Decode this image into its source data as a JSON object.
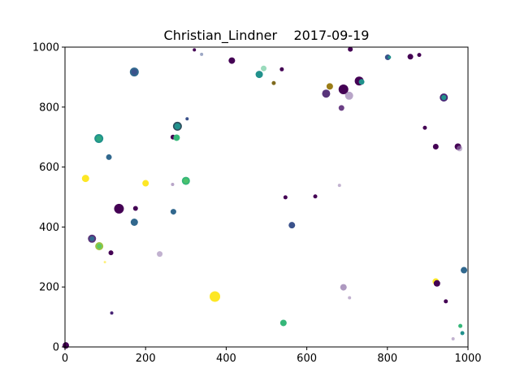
{
  "chart_data": {
    "type": "scatter",
    "title": "Christian_Lindner    2017-09-19",
    "xlabel": "",
    "ylabel": "",
    "xlim": [
      0,
      1000
    ],
    "ylim": [
      0,
      1000
    ],
    "grid": false,
    "legend": "none",
    "xticks": [
      "0",
      "200",
      "400",
      "600",
      "800",
      "1000"
    ],
    "yticks": [
      "0",
      "200",
      "400",
      "600",
      "800",
      "1000"
    ],
    "colormap": [
      "#440154",
      "#3b528b",
      "#21918c",
      "#5ec962",
      "#fde725"
    ],
    "points": [
      {
        "x": 172,
        "y": 917,
        "size": 5.5,
        "color": "#31688e",
        "alpha": 1
      },
      {
        "x": 172,
        "y": 917,
        "size": 3.5,
        "color": "#3b528b",
        "alpha": 1
      },
      {
        "x": 321,
        "y": 991,
        "size": 2,
        "color": "#440154",
        "alpha": 1
      },
      {
        "x": 339,
        "y": 976,
        "size": 2,
        "color": "#3b528b",
        "alpha": 0.5
      },
      {
        "x": 414,
        "y": 955,
        "size": 4,
        "color": "#440154",
        "alpha": 1
      },
      {
        "x": 493,
        "y": 929,
        "size": 3.5,
        "color": "#35b779",
        "alpha": 0.5
      },
      {
        "x": 482,
        "y": 909,
        "size": 4.5,
        "color": "#21918c",
        "alpha": 1
      },
      {
        "x": 538,
        "y": 926,
        "size": 2.5,
        "color": "#440154",
        "alpha": 1
      },
      {
        "x": 518,
        "y": 880,
        "size": 2.5,
        "color": "#7f6a1d",
        "alpha": 1
      },
      {
        "x": 657,
        "y": 869,
        "size": 4,
        "color": "#9b7d17",
        "alpha": 1
      },
      {
        "x": 708,
        "y": 993,
        "size": 3,
        "color": "#440154",
        "alpha": 1
      },
      {
        "x": 691,
        "y": 859,
        "size": 6,
        "color": "#440154",
        "alpha": 1
      },
      {
        "x": 705,
        "y": 838,
        "size": 5,
        "color": "#9a7fb0",
        "alpha": 0.7
      },
      {
        "x": 730,
        "y": 887,
        "size": 5.5,
        "color": "#440154",
        "alpha": 1
      },
      {
        "x": 736,
        "y": 884,
        "size": 3.5,
        "color": "#21918c",
        "alpha": 1
      },
      {
        "x": 648,
        "y": 845,
        "size": 5,
        "color": "#58347a",
        "alpha": 1
      },
      {
        "x": 686,
        "y": 797,
        "size": 3.5,
        "color": "#6b3f85",
        "alpha": 1
      },
      {
        "x": 801,
        "y": 966,
        "size": 3.5,
        "color": "#3b528b",
        "alpha": 1
      },
      {
        "x": 805,
        "y": 966,
        "size": 2,
        "color": "#21918c",
        "alpha": 1
      },
      {
        "x": 857,
        "y": 968,
        "size": 3.5,
        "color": "#440154",
        "alpha": 1
      },
      {
        "x": 879,
        "y": 974,
        "size": 2.5,
        "color": "#440154",
        "alpha": 1
      },
      {
        "x": 940,
        "y": 832,
        "size": 5,
        "color": "#482475",
        "alpha": 1
      },
      {
        "x": 940,
        "y": 832,
        "size": 3.2,
        "color": "#21918c",
        "alpha": 1
      },
      {
        "x": 893,
        "y": 731,
        "size": 2.5,
        "color": "#440154",
        "alpha": 1
      },
      {
        "x": 920,
        "y": 668,
        "size": 3.5,
        "color": "#440154",
        "alpha": 1
      },
      {
        "x": 975,
        "y": 668,
        "size": 4,
        "color": "#440154",
        "alpha": 1
      },
      {
        "x": 979,
        "y": 662,
        "size": 3.5,
        "color": "#9a7fb0",
        "alpha": 0.6
      },
      {
        "x": 303,
        "y": 761,
        "size": 2,
        "color": "#3b528b",
        "alpha": 1
      },
      {
        "x": 279,
        "y": 736,
        "size": 5.5,
        "color": "#2f4f5f",
        "alpha": 1
      },
      {
        "x": 279,
        "y": 736,
        "size": 3.8,
        "color": "#21918c",
        "alpha": 1
      },
      {
        "x": 268,
        "y": 700,
        "size": 3,
        "color": "#440154",
        "alpha": 1
      },
      {
        "x": 277,
        "y": 698,
        "size": 4,
        "color": "#35b779",
        "alpha": 1
      },
      {
        "x": 84,
        "y": 695,
        "size": 5.5,
        "color": "#21918c",
        "alpha": 1
      },
      {
        "x": 84,
        "y": 695,
        "size": 3.5,
        "color": "#35b779",
        "alpha": 0.6
      },
      {
        "x": 109,
        "y": 633,
        "size": 3.5,
        "color": "#31688e",
        "alpha": 1
      },
      {
        "x": 51,
        "y": 562,
        "size": 4.5,
        "color": "#fde725",
        "alpha": 1
      },
      {
        "x": 200,
        "y": 546,
        "size": 4,
        "color": "#fde725",
        "alpha": 1
      },
      {
        "x": 267,
        "y": 542,
        "size": 2,
        "color": "#9a7fb0",
        "alpha": 0.7
      },
      {
        "x": 300,
        "y": 554,
        "size": 5,
        "color": "#35b779",
        "alpha": 1
      },
      {
        "x": 300,
        "y": 554,
        "size": 3,
        "color": "#5ec962",
        "alpha": 0.6
      },
      {
        "x": 547,
        "y": 499,
        "size": 2.5,
        "color": "#440154",
        "alpha": 1
      },
      {
        "x": 621,
        "y": 502,
        "size": 2.5,
        "color": "#440154",
        "alpha": 1
      },
      {
        "x": 681,
        "y": 539,
        "size": 2,
        "color": "#9a7fb0",
        "alpha": 0.6
      },
      {
        "x": 134,
        "y": 461,
        "size": 6,
        "color": "#440154",
        "alpha": 1
      },
      {
        "x": 175,
        "y": 462,
        "size": 3,
        "color": "#440154",
        "alpha": 1
      },
      {
        "x": 269,
        "y": 451,
        "size": 3.5,
        "color": "#31688e",
        "alpha": 1
      },
      {
        "x": 172,
        "y": 416,
        "size": 4.5,
        "color": "#31688e",
        "alpha": 1
      },
      {
        "x": 563,
        "y": 406,
        "size": 4,
        "color": "#3b528b",
        "alpha": 1
      },
      {
        "x": 67,
        "y": 361,
        "size": 5,
        "color": "#58347a",
        "alpha": 1
      },
      {
        "x": 67,
        "y": 361,
        "size": 3,
        "color": "#31688e",
        "alpha": 1
      },
      {
        "x": 85,
        "y": 336,
        "size": 5,
        "color": "#9ac341",
        "alpha": 1
      },
      {
        "x": 85,
        "y": 336,
        "size": 3,
        "color": "#5ec962",
        "alpha": 1
      },
      {
        "x": 114,
        "y": 314,
        "size": 3,
        "color": "#440154",
        "alpha": 1
      },
      {
        "x": 235,
        "y": 310,
        "size": 3.5,
        "color": "#9a7fb0",
        "alpha": 0.6
      },
      {
        "x": 99,
        "y": 283,
        "size": 1.5,
        "color": "#fde725",
        "alpha": 0.6
      },
      {
        "x": 372,
        "y": 168,
        "size": 6.5,
        "color": "#fde725",
        "alpha": 1
      },
      {
        "x": 116,
        "y": 113,
        "size": 2,
        "color": "#482475",
        "alpha": 1
      },
      {
        "x": 542,
        "y": 80,
        "size": 4,
        "color": "#35b779",
        "alpha": 1
      },
      {
        "x": 691,
        "y": 199,
        "size": 4,
        "color": "#9a7fb0",
        "alpha": 0.8
      },
      {
        "x": 706,
        "y": 164,
        "size": 2,
        "color": "#9a7fb0",
        "alpha": 0.6
      },
      {
        "x": 920,
        "y": 218,
        "size": 4,
        "color": "#fde725",
        "alpha": 1
      },
      {
        "x": 923,
        "y": 212,
        "size": 4,
        "color": "#440154",
        "alpha": 1
      },
      {
        "x": 945,
        "y": 152,
        "size": 2.5,
        "color": "#440154",
        "alpha": 1
      },
      {
        "x": 990,
        "y": 256,
        "size": 4,
        "color": "#31688e",
        "alpha": 1
      },
      {
        "x": 981,
        "y": 70,
        "size": 2.5,
        "color": "#35b779",
        "alpha": 1
      },
      {
        "x": 986,
        "y": 46,
        "size": 2.5,
        "color": "#21918c",
        "alpha": 1
      },
      {
        "x": 963,
        "y": 27,
        "size": 2,
        "color": "#9a7fb0",
        "alpha": 0.6
      },
      {
        "x": 2,
        "y": 5,
        "size": 4,
        "color": "#440154",
        "alpha": 1
      }
    ]
  }
}
